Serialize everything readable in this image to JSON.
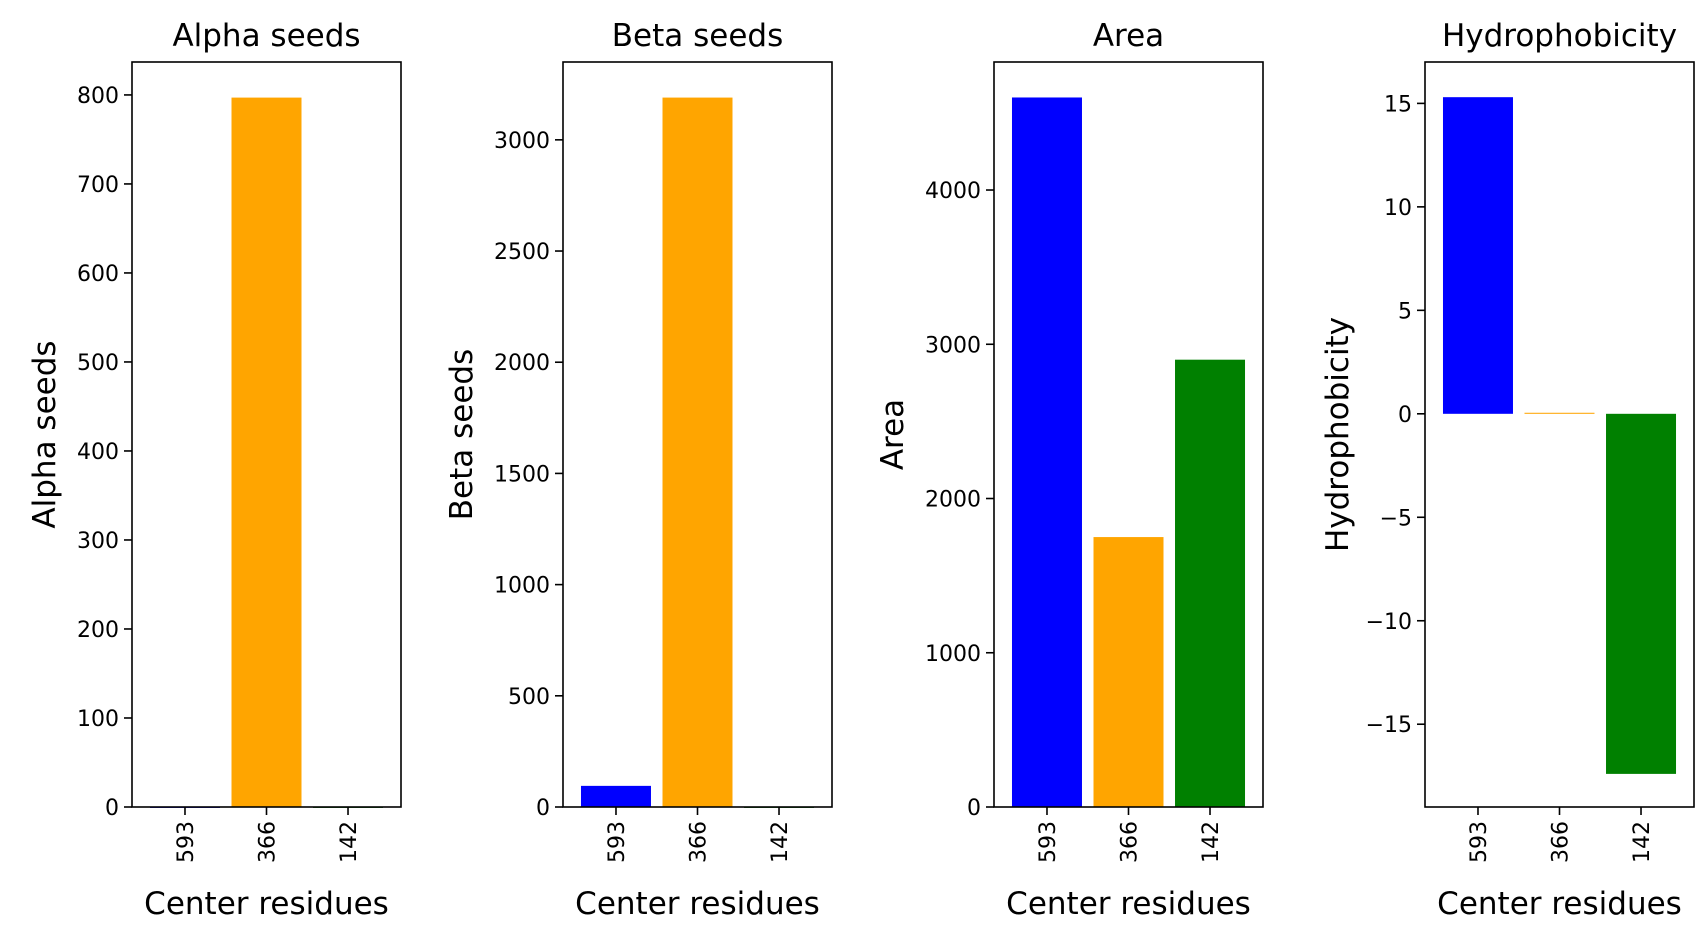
{
  "chart_data": [
    {
      "type": "bar",
      "title": "Alpha seeds",
      "xlabel": "Center residues",
      "ylabel": "Alpha seeds",
      "categories": [
        "593",
        "366",
        "142"
      ],
      "values": [
        0,
        797,
        0
      ],
      "colors": [
        "#0000ff",
        "#ffa500",
        "#008000"
      ],
      "ylim": [
        0,
        837
      ],
      "yticks": [
        0,
        100,
        200,
        300,
        400,
        500,
        600,
        700,
        800
      ],
      "ytick_labels": [
        "0",
        "100",
        "200",
        "300",
        "400",
        "500",
        "600",
        "700",
        "800"
      ]
    },
    {
      "type": "bar",
      "title": "Beta seeds",
      "xlabel": "Center residues",
      "ylabel": "Beta seeds",
      "categories": [
        "593",
        "366",
        "142"
      ],
      "values": [
        95,
        3190,
        0
      ],
      "colors": [
        "#0000ff",
        "#ffa500",
        "#008000"
      ],
      "ylim": [
        0,
        3350
      ],
      "yticks": [
        0,
        500,
        1000,
        1500,
        2000,
        2500,
        3000
      ],
      "ytick_labels": [
        "0",
        "500",
        "1000",
        "1500",
        "2000",
        "2500",
        "3000"
      ]
    },
    {
      "type": "bar",
      "title": "Area",
      "xlabel": "Center residues",
      "ylabel": "Area",
      "categories": [
        "593",
        "366",
        "142"
      ],
      "values": [
        4600,
        1750,
        2900
      ],
      "colors": [
        "#0000ff",
        "#ffa500",
        "#008000"
      ],
      "ylim": [
        0,
        4830
      ],
      "yticks": [
        0,
        1000,
        2000,
        3000,
        4000
      ],
      "ytick_labels": [
        "0",
        "1000",
        "2000",
        "3000",
        "4000"
      ]
    },
    {
      "type": "bar",
      "title": "Hydrophobicity",
      "xlabel": "Center residues",
      "ylabel": "Hydrophobicity",
      "categories": [
        "593",
        "366",
        "142"
      ],
      "values": [
        15.3,
        0.05,
        -17.4
      ],
      "colors": [
        "#0000ff",
        "#ffa500",
        "#008000"
      ],
      "ylim": [
        -19.0,
        17.0
      ],
      "yticks": [
        -15,
        -10,
        -5,
        0,
        5,
        10,
        15
      ],
      "ytick_labels": [
        "−15",
        "−10",
        "−5",
        "0",
        "5",
        "10",
        "15"
      ]
    }
  ]
}
